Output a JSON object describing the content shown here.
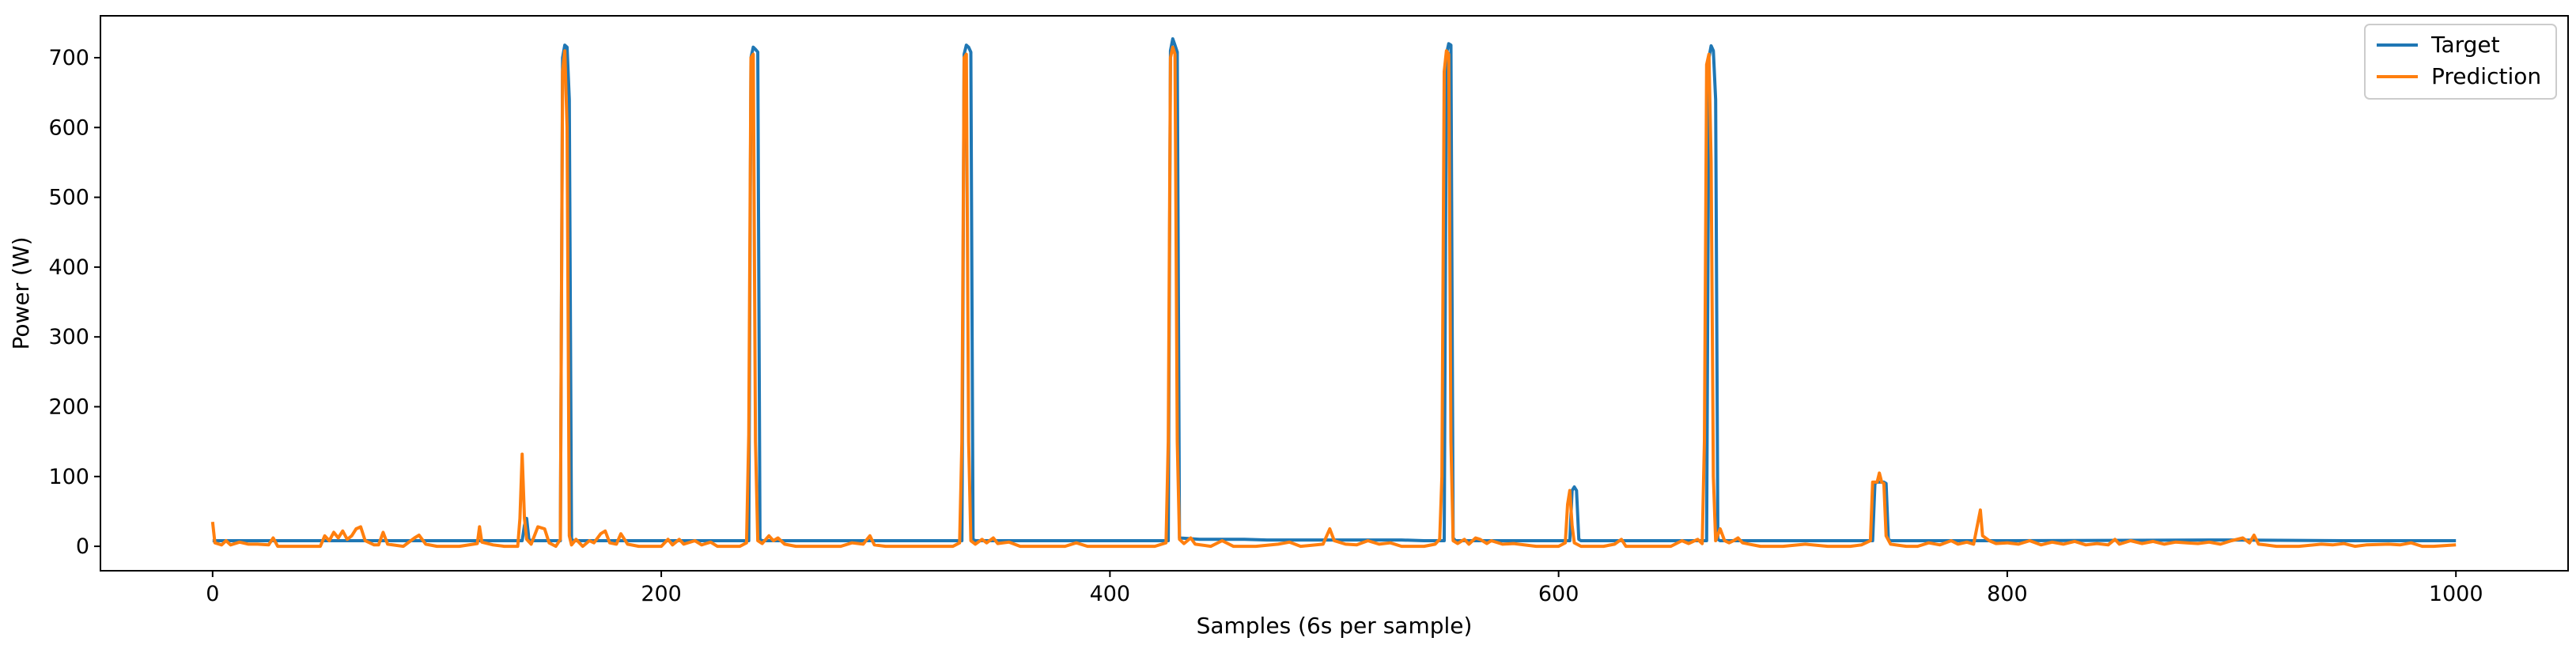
{
  "chart_data": {
    "type": "line",
    "title": "",
    "xlabel": "Samples (6s per sample)",
    "ylabel": "Power (W)",
    "xlim": [
      -50,
      1050
    ],
    "ylim": [
      -35,
      760
    ],
    "xticks": [
      0,
      200,
      400,
      600,
      800,
      1000
    ],
    "yticks": [
      0,
      100,
      200,
      300,
      400,
      500,
      600,
      700
    ],
    "legend_position": "top-right",
    "grid": false,
    "series": [
      {
        "name": "Target",
        "color": "#1f77b4",
        "points": [
          [
            0,
            8
          ],
          [
            10,
            8
          ],
          [
            100,
            8
          ],
          [
            138,
            8
          ],
          [
            139,
            30
          ],
          [
            140,
            40
          ],
          [
            141,
            10
          ],
          [
            142,
            8
          ],
          [
            155,
            8
          ],
          [
            156,
            700
          ],
          [
            157,
            718
          ],
          [
            158,
            715
          ],
          [
            159,
            640
          ],
          [
            160,
            10
          ],
          [
            161,
            8
          ],
          [
            239,
            8
          ],
          [
            240,
            700
          ],
          [
            241,
            715
          ],
          [
            242,
            712
          ],
          [
            243,
            708
          ],
          [
            244,
            10
          ],
          [
            245,
            8
          ],
          [
            334,
            8
          ],
          [
            335,
            705
          ],
          [
            336,
            718
          ],
          [
            337,
            715
          ],
          [
            338,
            708
          ],
          [
            339,
            10
          ],
          [
            340,
            8
          ],
          [
            426,
            8
          ],
          [
            427,
            710
          ],
          [
            428,
            727
          ],
          [
            429,
            718
          ],
          [
            430,
            708
          ],
          [
            431,
            12
          ],
          [
            440,
            10
          ],
          [
            460,
            10
          ],
          [
            470,
            9
          ],
          [
            500,
            9
          ],
          [
            530,
            9
          ],
          [
            540,
            8
          ],
          [
            549,
            8
          ],
          [
            550,
            705
          ],
          [
            551,
            720
          ],
          [
            552,
            718
          ],
          [
            553,
            12
          ],
          [
            554,
            8
          ],
          [
            605,
            8
          ],
          [
            606,
            80
          ],
          [
            607,
            85
          ],
          [
            608,
            80
          ],
          [
            609,
            10
          ],
          [
            610,
            8
          ],
          [
            666,
            8
          ],
          [
            667,
            700
          ],
          [
            668,
            717
          ],
          [
            669,
            710
          ],
          [
            670,
            640
          ],
          [
            671,
            10
          ],
          [
            672,
            8
          ],
          [
            740,
            8
          ],
          [
            741,
            90
          ],
          [
            742,
            92
          ],
          [
            745,
            92
          ],
          [
            746,
            90
          ],
          [
            747,
            10
          ],
          [
            748,
            8
          ],
          [
            800,
            8
          ],
          [
            900,
            9
          ],
          [
            950,
            8
          ],
          [
            1000,
            8
          ]
        ]
      },
      {
        "name": "Prediction",
        "color": "#ff7f0e",
        "points": [
          [
            0,
            35
          ],
          [
            1,
            5
          ],
          [
            4,
            2
          ],
          [
            6,
            8
          ],
          [
            8,
            2
          ],
          [
            12,
            6
          ],
          [
            16,
            3
          ],
          [
            20,
            3
          ],
          [
            25,
            2
          ],
          [
            27,
            12
          ],
          [
            29,
            0
          ],
          [
            40,
            0
          ],
          [
            48,
            0
          ],
          [
            50,
            15
          ],
          [
            52,
            8
          ],
          [
            54,
            20
          ],
          [
            56,
            12
          ],
          [
            58,
            22
          ],
          [
            60,
            10
          ],
          [
            62,
            15
          ],
          [
            64,
            25
          ],
          [
            66,
            28
          ],
          [
            68,
            8
          ],
          [
            72,
            2
          ],
          [
            74,
            2
          ],
          [
            76,
            20
          ],
          [
            78,
            3
          ],
          [
            85,
            0
          ],
          [
            90,
            12
          ],
          [
            92,
            16
          ],
          [
            95,
            3
          ],
          [
            100,
            0
          ],
          [
            110,
            0
          ],
          [
            118,
            4
          ],
          [
            119,
            28
          ],
          [
            120,
            6
          ],
          [
            125,
            2
          ],
          [
            130,
            0
          ],
          [
            136,
            0
          ],
          [
            137,
            40
          ],
          [
            138,
            132
          ],
          [
            139,
            40
          ],
          [
            140,
            10
          ],
          [
            142,
            3
          ],
          [
            145,
            28
          ],
          [
            148,
            25
          ],
          [
            150,
            5
          ],
          [
            153,
            0
          ],
          [
            155,
            10
          ],
          [
            156,
            680
          ],
          [
            157,
            710
          ],
          [
            158,
            600
          ],
          [
            159,
            15
          ],
          [
            160,
            2
          ],
          [
            162,
            10
          ],
          [
            165,
            0
          ],
          [
            168,
            8
          ],
          [
            170,
            5
          ],
          [
            173,
            18
          ],
          [
            175,
            22
          ],
          [
            177,
            5
          ],
          [
            180,
            3
          ],
          [
            182,
            18
          ],
          [
            185,
            3
          ],
          [
            190,
            0
          ],
          [
            200,
            0
          ],
          [
            203,
            10
          ],
          [
            205,
            2
          ],
          [
            208,
            10
          ],
          [
            210,
            3
          ],
          [
            215,
            8
          ],
          [
            218,
            2
          ],
          [
            222,
            6
          ],
          [
            225,
            0
          ],
          [
            235,
            0
          ],
          [
            238,
            5
          ],
          [
            239,
            160
          ],
          [
            240,
            700
          ],
          [
            241,
            705
          ],
          [
            242,
            150
          ],
          [
            243,
            8
          ],
          [
            245,
            4
          ],
          [
            248,
            15
          ],
          [
            250,
            8
          ],
          [
            252,
            12
          ],
          [
            255,
            3
          ],
          [
            260,
            0
          ],
          [
            270,
            0
          ],
          [
            280,
            0
          ],
          [
            285,
            5
          ],
          [
            290,
            3
          ],
          [
            293,
            15
          ],
          [
            295,
            2
          ],
          [
            300,
            0
          ],
          [
            320,
            0
          ],
          [
            330,
            0
          ],
          [
            333,
            5
          ],
          [
            334,
            150
          ],
          [
            335,
            700
          ],
          [
            336,
            705
          ],
          [
            337,
            150
          ],
          [
            338,
            8
          ],
          [
            340,
            3
          ],
          [
            343,
            10
          ],
          [
            345,
            5
          ],
          [
            348,
            12
          ],
          [
            350,
            4
          ],
          [
            355,
            6
          ],
          [
            360,
            0
          ],
          [
            370,
            0
          ],
          [
            380,
            0
          ],
          [
            385,
            5
          ],
          [
            390,
            0
          ],
          [
            400,
            0
          ],
          [
            410,
            0
          ],
          [
            420,
            0
          ],
          [
            425,
            5
          ],
          [
            426,
            150
          ],
          [
            427,
            700
          ],
          [
            428,
            715
          ],
          [
            429,
            705
          ],
          [
            430,
            150
          ],
          [
            431,
            10
          ],
          [
            433,
            4
          ],
          [
            436,
            12
          ],
          [
            438,
            3
          ],
          [
            445,
            0
          ],
          [
            450,
            8
          ],
          [
            455,
            0
          ],
          [
            465,
            0
          ],
          [
            475,
            3
          ],
          [
            480,
            6
          ],
          [
            485,
            0
          ],
          [
            495,
            3
          ],
          [
            498,
            25
          ],
          [
            500,
            8
          ],
          [
            505,
            3
          ],
          [
            510,
            2
          ],
          [
            515,
            8
          ],
          [
            520,
            3
          ],
          [
            525,
            5
          ],
          [
            530,
            0
          ],
          [
            540,
            0
          ],
          [
            545,
            3
          ],
          [
            547,
            10
          ],
          [
            548,
            100
          ],
          [
            549,
            680
          ],
          [
            550,
            710
          ],
          [
            551,
            705
          ],
          [
            552,
            150
          ],
          [
            553,
            8
          ],
          [
            555,
            4
          ],
          [
            558,
            10
          ],
          [
            560,
            3
          ],
          [
            563,
            12
          ],
          [
            565,
            10
          ],
          [
            568,
            4
          ],
          [
            570,
            8
          ],
          [
            575,
            3
          ],
          [
            580,
            4
          ],
          [
            590,
            0
          ],
          [
            600,
            0
          ],
          [
            603,
            5
          ],
          [
            604,
            60
          ],
          [
            605,
            80
          ],
          [
            606,
            30
          ],
          [
            607,
            5
          ],
          [
            610,
            0
          ],
          [
            620,
            0
          ],
          [
            625,
            3
          ],
          [
            628,
            10
          ],
          [
            630,
            0
          ],
          [
            640,
            0
          ],
          [
            650,
            0
          ],
          [
            655,
            8
          ],
          [
            658,
            4
          ],
          [
            662,
            10
          ],
          [
            664,
            4
          ],
          [
            665,
            150
          ],
          [
            666,
            690
          ],
          [
            667,
            705
          ],
          [
            668,
            550
          ],
          [
            669,
            100
          ],
          [
            670,
            8
          ],
          [
            672,
            25
          ],
          [
            674,
            8
          ],
          [
            676,
            5
          ],
          [
            678,
            8
          ],
          [
            680,
            12
          ],
          [
            682,
            5
          ],
          [
            685,
            3
          ],
          [
            690,
            0
          ],
          [
            700,
            0
          ],
          [
            710,
            3
          ],
          [
            720,
            0
          ],
          [
            730,
            0
          ],
          [
            735,
            2
          ],
          [
            737,
            5
          ],
          [
            739,
            8
          ],
          [
            740,
            92
          ],
          [
            742,
            92
          ],
          [
            743,
            105
          ],
          [
            744,
            92
          ],
          [
            745,
            90
          ],
          [
            746,
            15
          ],
          [
            748,
            3
          ],
          [
            755,
            0
          ],
          [
            760,
            0
          ],
          [
            765,
            5
          ],
          [
            770,
            2
          ],
          [
            775,
            8
          ],
          [
            778,
            3
          ],
          [
            782,
            6
          ],
          [
            785,
            3
          ],
          [
            788,
            52
          ],
          [
            789,
            15
          ],
          [
            792,
            8
          ],
          [
            795,
            4
          ],
          [
            800,
            5
          ],
          [
            805,
            3
          ],
          [
            810,
            8
          ],
          [
            815,
            2
          ],
          [
            820,
            6
          ],
          [
            825,
            3
          ],
          [
            830,
            7
          ],
          [
            835,
            2
          ],
          [
            840,
            4
          ],
          [
            845,
            2
          ],
          [
            848,
            10
          ],
          [
            850,
            3
          ],
          [
            855,
            8
          ],
          [
            860,
            4
          ],
          [
            865,
            7
          ],
          [
            870,
            3
          ],
          [
            875,
            6
          ],
          [
            880,
            5
          ],
          [
            885,
            4
          ],
          [
            890,
            6
          ],
          [
            895,
            3
          ],
          [
            900,
            8
          ],
          [
            905,
            12
          ],
          [
            908,
            5
          ],
          [
            910,
            16
          ],
          [
            912,
            3
          ],
          [
            915,
            2
          ],
          [
            920,
            0
          ],
          [
            930,
            0
          ],
          [
            940,
            3
          ],
          [
            945,
            2
          ],
          [
            950,
            4
          ],
          [
            955,
            0
          ],
          [
            960,
            2
          ],
          [
            970,
            3
          ],
          [
            975,
            2
          ],
          [
            980,
            5
          ],
          [
            985,
            0
          ],
          [
            990,
            0
          ],
          [
            1000,
            2
          ]
        ]
      }
    ]
  }
}
